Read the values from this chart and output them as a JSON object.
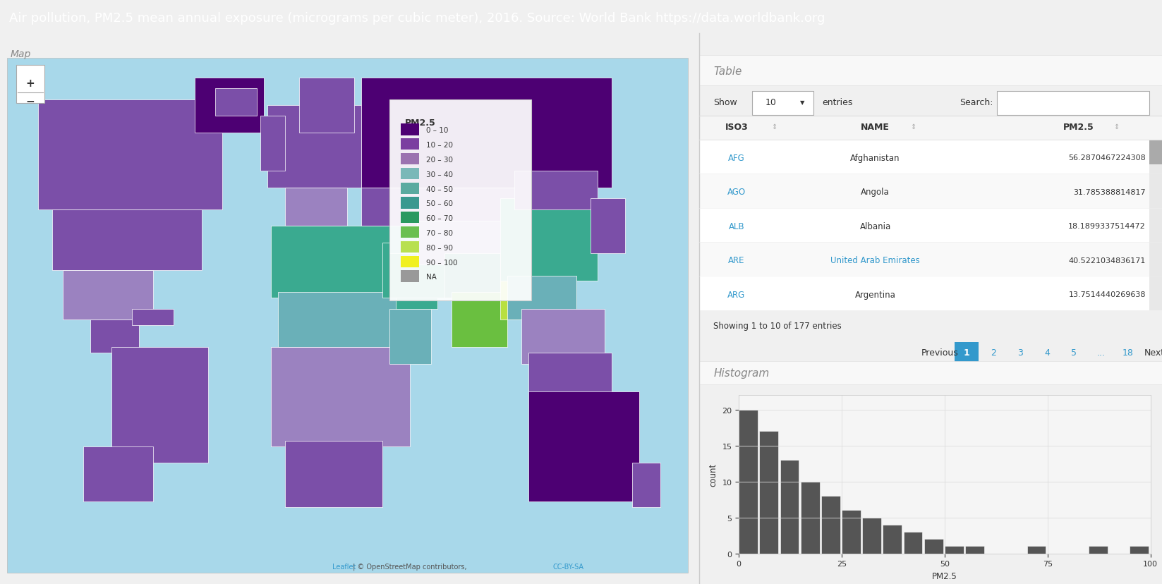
{
  "title": "Air pollution, PM2.5 mean annual exposure (micrograms per cubic meter), 2016. Source: World Bank https://data.worldbank.org",
  "title_bg": "#3399e0",
  "title_color": "white",
  "title_fontsize": 13,
  "map_section_label": "Map",
  "table_section_label": "Table",
  "histogram_section_label": "Histogram",
  "legend_title": "PM2.5",
  "legend_items": [
    {
      "label": "0 – 10",
      "color": "#4d0073"
    },
    {
      "label": "10 – 20",
      "color": "#7b3fa0"
    },
    {
      "label": "20 – 30",
      "color": "#9b72b0"
    },
    {
      "label": "30 – 40",
      "color": "#7ab8b8"
    },
    {
      "label": "40 – 50",
      "color": "#5aaaa0"
    },
    {
      "label": "50 – 60",
      "color": "#3a9990"
    },
    {
      "label": "60 – 70",
      "color": "#2a9960"
    },
    {
      "label": "70 – 80",
      "color": "#6abf50"
    },
    {
      "label": "80 – 90",
      "color": "#b8e050"
    },
    {
      "label": "90 – 100",
      "color": "#f0f020"
    },
    {
      "label": "NA",
      "color": "#999999"
    }
  ],
  "show_label": "Show",
  "entries_label": "entries",
  "search_label": "Search:",
  "show_value": "10",
  "table_headers": [
    "ISO3",
    "NAME",
    "PM2.5"
  ],
  "table_rows": [
    [
      "AFG",
      "Afghanistan",
      "56.2870467224308"
    ],
    [
      "AGO",
      "Angola",
      "31.785388814817"
    ],
    [
      "ALB",
      "Albania",
      "18.1899337514472"
    ],
    [
      "ARE",
      "United Arab Emirates",
      "40.5221034836171"
    ],
    [
      "ARG",
      "Argentina",
      "13.7514440269638"
    ]
  ],
  "are_name_color": "#3399cc",
  "showing_text": "Showing 1 to 10 of 177 entries",
  "pagination": [
    "Previous",
    "1",
    "2",
    "3",
    "4",
    "5",
    "...",
    "18",
    "Next"
  ],
  "active_page": "1",
  "hist_xlabel": "PM2.5",
  "hist_ylabel": "count",
  "hist_bar_color": "#555555",
  "hist_bg": "#f5f5f5",
  "hist_grid_color": "#dddddd",
  "hist_yticks": [
    0,
    5,
    10,
    15,
    20
  ],
  "hist_xticks": [
    0,
    25,
    50,
    75,
    100
  ],
  "hist_bar_heights": [
    20,
    17,
    13,
    10,
    8,
    6,
    5,
    4,
    3,
    2,
    1,
    1,
    0,
    0,
    1,
    0,
    0,
    1,
    0,
    1
  ],
  "hist_bar_left": [
    0,
    5,
    10,
    15,
    20,
    25,
    30,
    35,
    40,
    45,
    50,
    55,
    60,
    65,
    70,
    75,
    80,
    85,
    90,
    95
  ],
  "map_bg": "#a8d8ea",
  "text_dark": "#333333",
  "text_muted": "#888888",
  "text_link": "#3399cc",
  "zoom_minus": "−"
}
